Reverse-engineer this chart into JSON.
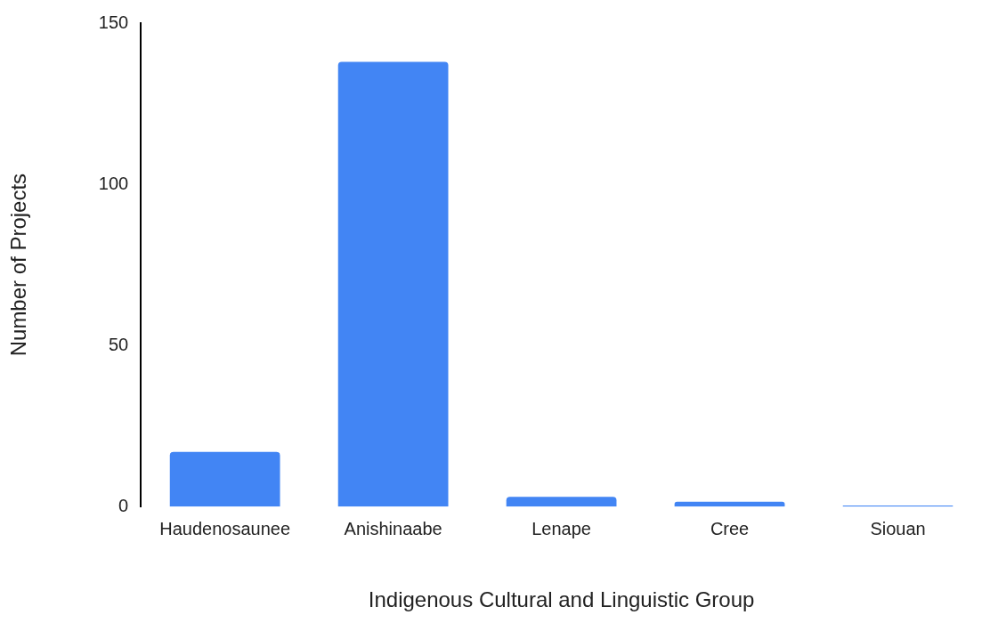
{
  "chart_data": {
    "type": "bar",
    "xlabel": "Indigenous Cultural and Linguistic Group",
    "ylabel": "Number of Projects",
    "categories": [
      "Haudenosaunee",
      "Anishinaabe",
      "Lenape",
      "Cree",
      "Siouan"
    ],
    "values": [
      17,
      138,
      3,
      1.5,
      0.3
    ],
    "color": "#4285f4",
    "ylim": [
      0,
      150
    ],
    "yticks": [
      0,
      50,
      100,
      150
    ],
    "grid": false,
    "legend": false
  }
}
